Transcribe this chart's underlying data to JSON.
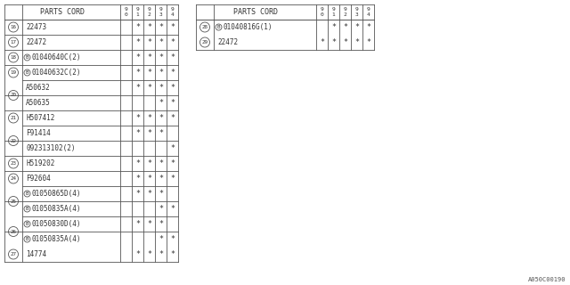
{
  "bg_color": "#ffffff",
  "border_color": "#555555",
  "text_color": "#333333",
  "font_family": "monospace",
  "title_font_size": 6.0,
  "cell_font_size": 5.5,
  "num_font_size": 4.2,
  "mark_font_size": 6.0,
  "footnote": "A050C00190",
  "left_table": {
    "header": [
      "PARTS CORD",
      "9\n0",
      "9\n1",
      "9\n2",
      "9\n3",
      "9\n4"
    ],
    "rows": [
      {
        "num": "16",
        "part": "22473",
        "marks": [
          " ",
          "*",
          "*",
          "*",
          "*"
        ],
        "b": false
      },
      {
        "num": "17",
        "part": "22472",
        "marks": [
          " ",
          "*",
          "*",
          "*",
          "*"
        ],
        "b": false
      },
      {
        "num": "18",
        "part": "01040640C(2)",
        "marks": [
          " ",
          "*",
          "*",
          "*",
          "*"
        ],
        "b": true
      },
      {
        "num": "19",
        "part": "01040632C(2)",
        "marks": [
          " ",
          "*",
          "*",
          "*",
          "*"
        ],
        "b": true
      },
      {
        "num": "20",
        "part": "A50632",
        "marks": [
          " ",
          "*",
          "*",
          "*",
          "*"
        ],
        "b": false
      },
      {
        "num": "20",
        "part": "A50635",
        "marks": [
          " ",
          " ",
          " ",
          "*",
          "*"
        ],
        "b": false
      },
      {
        "num": "21",
        "part": "H507412",
        "marks": [
          " ",
          "*",
          "*",
          "*",
          "*"
        ],
        "b": false
      },
      {
        "num": "22",
        "part": "F91414",
        "marks": [
          " ",
          "*",
          "*",
          "*",
          " "
        ],
        "b": false
      },
      {
        "num": "22",
        "part": "092313102(2)",
        "marks": [
          " ",
          " ",
          " ",
          " ",
          "*"
        ],
        "b": false
      },
      {
        "num": "23",
        "part": "H519202",
        "marks": [
          " ",
          "*",
          "*",
          "*",
          "*"
        ],
        "b": false
      },
      {
        "num": "24",
        "part": "F92604",
        "marks": [
          " ",
          "*",
          "*",
          "*",
          "*"
        ],
        "b": false
      },
      {
        "num": "25",
        "part": "01050865D(4)",
        "marks": [
          " ",
          "*",
          "*",
          "*",
          " "
        ],
        "b": true
      },
      {
        "num": "25",
        "part": "01050835A(4)",
        "marks": [
          " ",
          " ",
          " ",
          "*",
          "*"
        ],
        "b": true
      },
      {
        "num": "26",
        "part": "01050830D(4)",
        "marks": [
          " ",
          "*",
          "*",
          "*",
          " "
        ],
        "b": true
      },
      {
        "num": "26",
        "part": "01050835A(4)",
        "marks": [
          " ",
          " ",
          " ",
          "*",
          "*"
        ],
        "b": true
      },
      {
        "num": "27",
        "part": "14774",
        "marks": [
          " ",
          "*",
          "*",
          "*",
          "*"
        ],
        "b": false
      }
    ]
  },
  "right_table": {
    "header": [
      "PARTS CORD",
      "9\n0",
      "9\n1",
      "9\n2",
      "9\n3",
      "9\n4"
    ],
    "rows": [
      {
        "num": "28",
        "part": "01040816G(1)",
        "marks": [
          " ",
          "*",
          "*",
          "*",
          "*"
        ],
        "b": true
      },
      {
        "num": "29",
        "part": "22472",
        "marks": [
          "*",
          "*",
          "*",
          "*",
          "*"
        ],
        "b": false
      }
    ]
  }
}
